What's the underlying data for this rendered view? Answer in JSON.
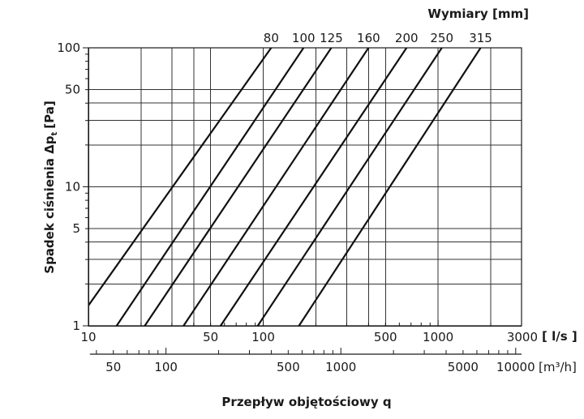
{
  "chart_data": {
    "type": "line",
    "title": "Wymiary [mm]",
    "ylabel": "Spadek ciśnienia Δp",
    "ylabel_subscript": "t",
    "ylabel_unit": "[Pa]",
    "xlabel": "Przepływ objętościowy q",
    "x_unit_primary": "[ l/s ]",
    "x_unit_secondary": "[m³/h]",
    "x_scale": "log",
    "y_scale": "log",
    "xlim": [
      10,
      3000
    ],
    "ylim": [
      1,
      100
    ],
    "secondary_xlim": [
      36,
      10800
    ],
    "grid": true,
    "y_ticks": [
      "1",
      "5",
      "10",
      "50",
      "100"
    ],
    "x_ticks": [
      "10",
      "50",
      "100",
      "500",
      "1000",
      "3000"
    ],
    "secondary_x_ticks": [
      "50",
      "100",
      "500",
      "1000",
      "5000",
      "10000"
    ],
    "series": [
      {
        "name": "80",
        "x": [
          10,
          111
        ],
        "y": [
          1.4,
          100
        ]
      },
      {
        "name": "100",
        "x": [
          14.5,
          170
        ],
        "y": [
          1,
          100
        ]
      },
      {
        "name": "125",
        "x": [
          21,
          245
        ],
        "y": [
          1,
          100
        ]
      },
      {
        "name": "160",
        "x": [
          35,
          400
        ],
        "y": [
          1,
          100
        ]
      },
      {
        "name": "200",
        "x": [
          57,
          660
        ],
        "y": [
          1,
          100
        ]
      },
      {
        "name": "250",
        "x": [
          93,
          1050
        ],
        "y": [
          1,
          100
        ]
      },
      {
        "name": "315",
        "x": [
          160,
          1750
        ],
        "y": [
          1,
          100
        ]
      }
    ]
  }
}
